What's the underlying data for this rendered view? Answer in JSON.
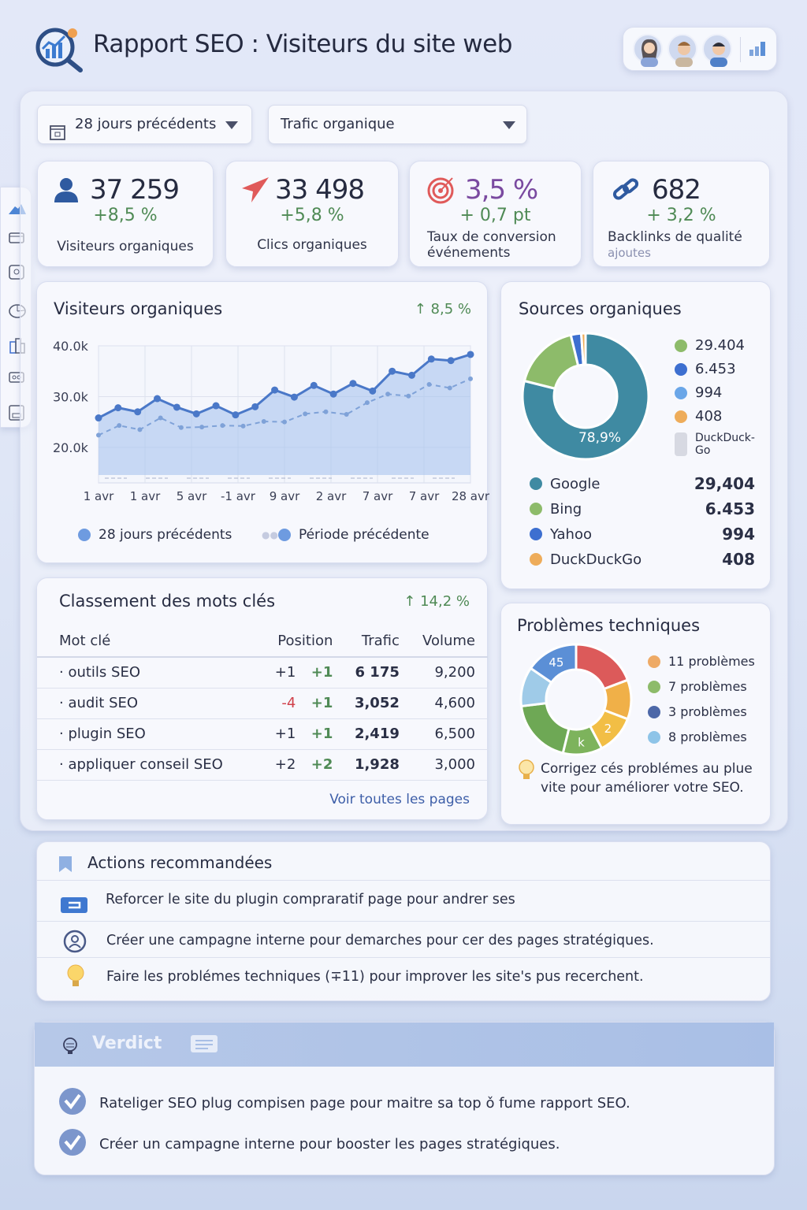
{
  "header": {
    "title": "Rapport SEO : Visiteurs du site web",
    "logo": "seo-magnifier-chart-icon",
    "menu_icon": "bar-chart-icon",
    "avatars": [
      "user-avatar-1",
      "user-avatar-2",
      "user-avatar-3"
    ]
  },
  "sidebar": {
    "items": [
      "mountain-icon",
      "card-icon",
      "monitor-icon",
      "pie-chart-icon",
      "buildings-icon",
      "toggle-icon",
      "archive-icon"
    ]
  },
  "filters": {
    "period": "28 jours précédents",
    "metric": "Trafic organique"
  },
  "kpis": [
    {
      "icon": "user-icon",
      "value": "37 259",
      "delta": "+8,5 %",
      "label": "Visiteurs organiques"
    },
    {
      "icon": "cursor-arrow-icon",
      "value": "33 498",
      "delta": "+5,8 %",
      "label": "Clics organiques"
    },
    {
      "icon": "target-icon",
      "value": "3,5 %",
      "delta": "+ 0,7 pt",
      "label": "Taux de conversion",
      "label2": "événements"
    },
    {
      "icon": "link-icon",
      "value": "682",
      "delta": "+ 3,2 %",
      "label": "Backlinks de qualité",
      "label2": "ajoutes"
    }
  ],
  "colors": {
    "accent": "#4a78c8",
    "positive": "#4f8a55",
    "negative": "#d0404a"
  },
  "chart_data": [
    {
      "type": "line",
      "title": "Visiteurs organiques",
      "trend": "↑ 8,5 %",
      "yticks": [
        "40.0k",
        "30.0k",
        "20.0k"
      ],
      "ylim": [
        13000,
        40000
      ],
      "yticks_values": [
        40000,
        30000,
        20000
      ],
      "xticks": [
        "1 avr",
        "1 avr",
        "5 avr",
        "-1 avr",
        "9 avr",
        "2 avr",
        "7 avr",
        "7 avr",
        "28 avr"
      ],
      "grid": true,
      "legend": "bottom",
      "series": [
        {
          "name": "28 jours précédents",
          "style": "solid",
          "color": "#4a78c8",
          "values": [
            25800,
            27800,
            27000,
            29600,
            27900,
            26600,
            28200,
            26400,
            28000,
            31300,
            29900,
            32200,
            30500,
            32600,
            31100,
            35000,
            34200,
            37400,
            37100,
            38300
          ]
        },
        {
          "name": "Période précédente",
          "style": "dashed",
          "color": "#7fa2d8",
          "values": [
            22400,
            24300,
            23500,
            25800,
            23900,
            24000,
            24300,
            24200,
            25100,
            25000,
            26600,
            27000,
            26500,
            28800,
            30500,
            30100,
            32400,
            31700,
            33500
          ]
        }
      ]
    },
    {
      "type": "pie",
      "title": "Sources organiques",
      "center_label": "78,9%",
      "slices": [
        {
          "name": "Google",
          "value": 29404,
          "display": "29,404",
          "color": "#3f8aa2"
        },
        {
          "name": "Bing",
          "value": 6453,
          "display": "6.453",
          "color": "#8dbb6a"
        },
        {
          "name": "Yahoo",
          "value": 994,
          "display": "994",
          "color": "#3d6fd0"
        },
        {
          "name": "DuckDuckGo",
          "value": 408,
          "display": "408",
          "color": "#eeac5a"
        }
      ],
      "side_legend": [
        {
          "label": "29.404",
          "color": "#8dbb6a"
        },
        {
          "label": "6.453",
          "color": "#3d6fd0"
        },
        {
          "label": "994",
          "color": "#6aa6e8"
        },
        {
          "label": "408",
          "color": "#eeac5a"
        },
        {
          "label": "DuckDuck-Go",
          "color": "#d7d9e2"
        }
      ]
    },
    {
      "type": "pie",
      "title": "Problèmes techniques",
      "slices": [
        {
          "value": 5,
          "color": "#dc5a5a"
        },
        {
          "value": 3,
          "color": "#f0b048"
        },
        {
          "value": 3,
          "color": "#f2be45",
          "label": "2"
        },
        {
          "value": 3,
          "color": "#7db35c",
          "label": "k"
        },
        {
          "value": 5,
          "color": "#6ea855"
        },
        {
          "value": 3,
          "color": "#9fcbe8"
        },
        {
          "value": 4,
          "color": "#5b8fd6",
          "label": "45"
        }
      ],
      "legend": [
        {
          "label": "11 problèmes",
          "color": "#eeaa66"
        },
        {
          "label": "7 problèmes",
          "color": "#8dbb6a"
        },
        {
          "label": "3 problèmes",
          "color": "#4d68a8"
        },
        {
          "label": "8 problèmes",
          "color": "#8ec4e8"
        }
      ],
      "tip": "Corrigez cés problémes au plue vite pour améliorer votre SEO."
    }
  ],
  "keywords": {
    "title": "Classement des mots clés",
    "trend": "↑ 14,2 %",
    "columns": [
      "Mot clé",
      "Position",
      "Trafic",
      "Volume"
    ],
    "rows": [
      {
        "kw": "· outils SEO",
        "pos": "+1",
        "chg": "+1",
        "traffic": "6 175",
        "volume": "9,200"
      },
      {
        "kw": "· audit SEO",
        "pos": "-4",
        "chg": "+1",
        "traffic": "3,052",
        "volume": "4,600"
      },
      {
        "kw": "· plugin SEO",
        "pos": "+1",
        "chg": "+1",
        "traffic": "2,419",
        "volume": "6,500"
      },
      {
        "kw": "· appliquer conseil SEO",
        "pos": "+2",
        "chg": "+2",
        "traffic": "1,928",
        "volume": "3,000"
      }
    ],
    "link": "Voir toutes les pages"
  },
  "actions": {
    "title": "Actions recommandées",
    "items": [
      {
        "icon": "plugin-card-icon",
        "text": "Reforcer le site du plugin compraratif page pour andrer ses"
      },
      {
        "icon": "user-circle-icon",
        "text": "Créer une campagne interne pour demarches pour cer des pages stratégiques."
      },
      {
        "icon": "lightbulb-icon",
        "text": "Faire les problémes techniques (∓11) pour improver les site's pus recerchent."
      }
    ]
  },
  "verdict": {
    "title": "Verdict",
    "items": [
      "Rateliger SEO plug compisen page pour maitre sa top ǒ fume rapport SEO.",
      "Créer un campagne interne pour booster les pages stratégiques."
    ]
  }
}
